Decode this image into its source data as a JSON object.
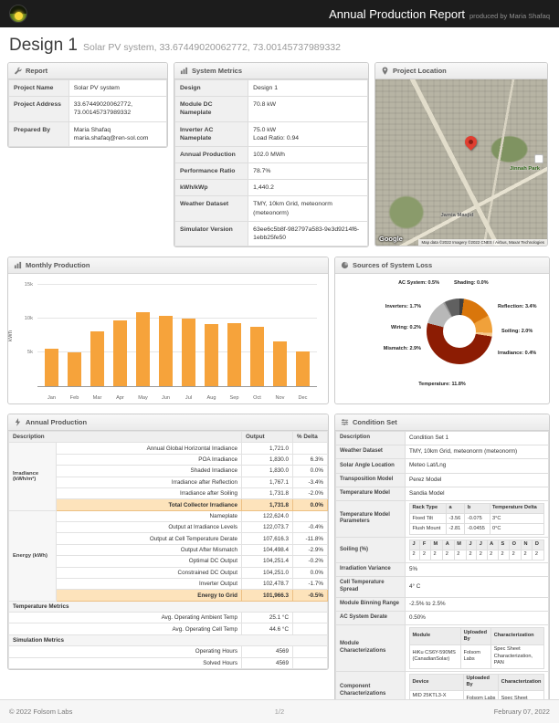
{
  "header": {
    "title": "Annual Production Report",
    "produced_by": "produced by Maria Shafaq"
  },
  "page": {
    "design_title": "Design 1",
    "design_subtitle": "Solar PV system, 33.67449020062772, 73.00145737989332"
  },
  "panels": {
    "report": {
      "title": "Report",
      "rows": [
        {
          "label": "Project Name",
          "value": "Solar PV system"
        },
        {
          "label": "Project Address",
          "value": "33.67449020062772, 73.00145737989332"
        },
        {
          "label": "Prepared By",
          "value": "Maria Shafaq",
          "value2": "maria.shafaq@ren-sol.com"
        }
      ]
    },
    "system_metrics": {
      "title": "System Metrics",
      "rows": [
        {
          "label": "Design",
          "value": "Design 1"
        },
        {
          "label": "Module DC Nameplate",
          "value": "70.8 kW"
        },
        {
          "label": "Inverter AC Nameplate",
          "value": "75.0 kW",
          "value2": "Load Ratio: 0.94"
        },
        {
          "label": "Annual Production",
          "value": "102.0 MWh"
        },
        {
          "label": "Performance Ratio",
          "value": "78.7%"
        },
        {
          "label": "kWh/kWp",
          "value": "1,440.2"
        },
        {
          "label": "Weather Dataset",
          "value": "TMY, 10km Grid, meteonorm",
          "value2": "(meteonorm)"
        },
        {
          "label": "Simulator Version",
          "value": "63ee6c5b8f-982797a583-9e3d9214f6-1ebb25fe50"
        }
      ]
    },
    "project_location": {
      "title": "Project Location",
      "google": "Google",
      "attribution": "Map data ©2022  Imagery ©2022 CNES / Airbus, Maxar Technologies",
      "park_label": "Jinnah Park",
      "mosque_label": "Jamia Masjid"
    },
    "monthly_production": {
      "title": "Monthly Production"
    },
    "system_loss": {
      "title": "Sources of System Loss"
    },
    "annual_production": {
      "title": "Annual Production",
      "columns": [
        "Description",
        "Output",
        "% Delta"
      ],
      "groups": [
        {
          "name": "Irradiance (kWh/m²)",
          "rows": [
            {
              "desc": "Annual Global Horizontal Irradiance",
              "output": "1,721.0",
              "delta": ""
            },
            {
              "desc": "POA Irradiance",
              "output": "1,830.0",
              "delta": "6.3%"
            },
            {
              "desc": "Shaded Irradiance",
              "output": "1,830.0",
              "delta": "0.0%"
            },
            {
              "desc": "Irradiance after Reflection",
              "output": "1,767.1",
              "delta": "-3.4%"
            },
            {
              "desc": "Irradiance after Soiling",
              "output": "1,731.8",
              "delta": "-2.0%"
            },
            {
              "desc": "Total Collector Irradiance",
              "output": "1,731.8",
              "delta": "0.0%",
              "highlight": true
            }
          ]
        },
        {
          "name": "Energy (kWh)",
          "rows": [
            {
              "desc": "Nameplate",
              "output": "122,624.0",
              "delta": ""
            },
            {
              "desc": "Output at Irradiance Levels",
              "output": "122,073.7",
              "delta": "-0.4%"
            },
            {
              "desc": "Output at Cell Temperature Derate",
              "output": "107,616.3",
              "delta": "-11.8%"
            },
            {
              "desc": "Output After Mismatch",
              "output": "104,498.4",
              "delta": "-2.9%"
            },
            {
              "desc": "Optimal DC Output",
              "output": "104,251.4",
              "delta": "-0.2%"
            },
            {
              "desc": "Constrained DC Output",
              "output": "104,251.0",
              "delta": "0.0%"
            },
            {
              "desc": "Inverter Output",
              "output": "102,478.7",
              "delta": "-1.7%"
            },
            {
              "desc": "Energy to Grid",
              "output": "101,966.3",
              "delta": "-0.5%",
              "highlight": true
            }
          ]
        }
      ],
      "sections": [
        {
          "name": "Temperature Metrics",
          "rows": [
            {
              "desc": "Avg. Operating Ambient Temp",
              "output": "25.1 °C"
            },
            {
              "desc": "Avg. Operating Cell Temp",
              "output": "44.6 °C"
            }
          ]
        },
        {
          "name": "Simulation Metrics",
          "rows": [
            {
              "desc": "Operating Hours",
              "output": "4569"
            },
            {
              "desc": "Solved Hours",
              "output": "4569"
            }
          ]
        }
      ]
    },
    "condition_set": {
      "title": "Condition Set",
      "rows": [
        {
          "label": "Description",
          "value": "Condition Set 1"
        },
        {
          "label": "Weather Dataset",
          "value": "TMY, 10km Grid, meteonorm (meteonorm)"
        },
        {
          "label": "Solar Angle Location",
          "value": "Meteo Lat/Lng"
        },
        {
          "label": "Transposition Model",
          "value": "Perez Model"
        },
        {
          "label": "Temperature Model",
          "value": "Sandia Model"
        },
        {
          "label": "Temperature Model Parameters",
          "table": {
            "header": [
              "Rack Type",
              "a",
              "b",
              "Temperature Delta"
            ],
            "rows": [
              [
                "Fixed Tilt",
                "-3.56",
                "-0.075",
                "3°C"
              ],
              [
                "Flush Mount",
                "-2.81",
                "-0.0455",
                "0°C"
              ]
            ]
          }
        },
        {
          "label": "Soiling (%)",
          "table": {
            "header": [
              "J",
              "F",
              "M",
              "A",
              "M",
              "J",
              "J",
              "A",
              "S",
              "O",
              "N",
              "D"
            ],
            "rows": [
              [
                "2",
                "2",
                "2",
                "2",
                "2",
                "2",
                "2",
                "2",
                "2",
                "2",
                "2",
                "2"
              ]
            ]
          }
        },
        {
          "label": "Irradiation Variance",
          "value": "5%"
        },
        {
          "label": "Cell Temperature Spread",
          "value": "4° C"
        },
        {
          "label": "Module Binning Range",
          "value": "-2.5% to 2.5%"
        },
        {
          "label": "AC System Derate",
          "value": "0.50%"
        },
        {
          "label": "Module Characterizations",
          "table": {
            "header": [
              "Module",
              "Uploaded By",
              "Characterization"
            ],
            "rows": [
              [
                "HiKu CS6Y-590MS (CanadianSolar)",
                "Folsom Labs",
                "Spec Sheet Characterization, PAN"
              ]
            ]
          }
        },
        {
          "label": "Component Characterizations",
          "table": {
            "header": [
              "Device",
              "Uploaded By",
              "Characterization"
            ],
            "rows": [
              [
                "MID 25KTL3-X (Growatt)",
                "Folsom Labs",
                "Spec Sheet"
              ]
            ]
          }
        }
      ]
    }
  },
  "chart_data": [
    {
      "type": "bar",
      "title": "Monthly Production",
      "ylabel": "kWh",
      "categories": [
        "Jan",
        "Feb",
        "Mar",
        "Apr",
        "May",
        "Jun",
        "Jul",
        "Aug",
        "Sep",
        "Oct",
        "Nov",
        "Dec"
      ],
      "values": [
        5600,
        5000,
        8100,
        9700,
        11000,
        10400,
        10000,
        9200,
        9300,
        8800,
        6600,
        5100
      ],
      "ylim": [
        0,
        15000
      ],
      "yticks": [
        {
          "value": 5000,
          "label": "5k"
        },
        {
          "value": 10000,
          "label": "10k"
        },
        {
          "value": 15000,
          "label": "15k"
        }
      ],
      "grid": true,
      "bar_color": "#f6a33b"
    },
    {
      "type": "pie",
      "title": "Sources of System Loss",
      "slices": [
        {
          "label": "AC System",
          "value": 0.5,
          "color": "#3f3f3f",
          "pos": "tl"
        },
        {
          "label": "Shading",
          "value": 0.0,
          "color": "#6e6e6e",
          "pos": "tr"
        },
        {
          "label": "Reflection",
          "value": 3.4,
          "color": "#d9760b",
          "pos": "r1"
        },
        {
          "label": "Soiling",
          "value": 2.0,
          "color": "#f0a13a",
          "pos": "r2"
        },
        {
          "label": "Irradiance",
          "value": 0.4,
          "color": "#f5c88d",
          "pos": "r3"
        },
        {
          "label": "Temperature",
          "value": 11.8,
          "color": "#8c1c03",
          "pos": "b"
        },
        {
          "label": "Mismatch",
          "value": 2.9,
          "color": "#b8b8b8",
          "pos": "l3"
        },
        {
          "label": "Wiring",
          "value": 0.2,
          "color": "#9a9a9a",
          "pos": "l2"
        },
        {
          "label": "Inverters",
          "value": 1.7,
          "color": "#606060",
          "pos": "l1"
        }
      ]
    }
  ],
  "footer": {
    "copyright": "© 2022 Folsom Labs",
    "page": "1/2",
    "date": "February 07, 2022"
  }
}
